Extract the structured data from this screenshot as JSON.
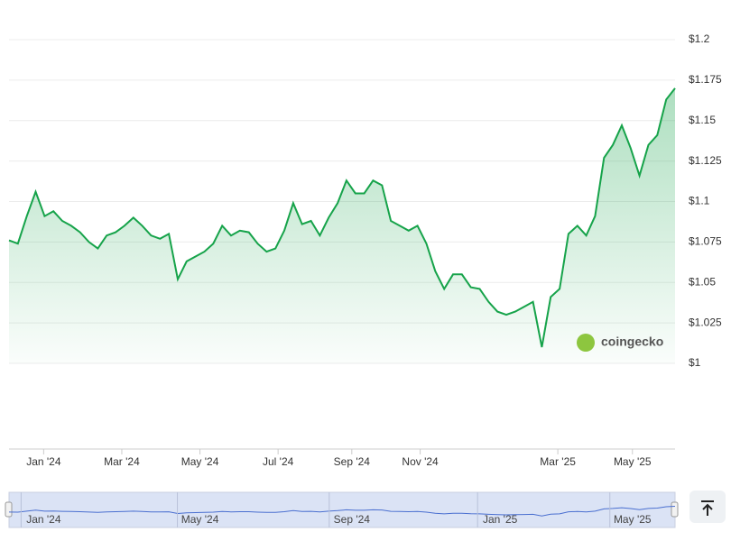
{
  "chart_data": {
    "type": "line",
    "values": [
      1.076,
      1.074,
      1.091,
      1.106,
      1.091,
      1.094,
      1.088,
      1.085,
      1.081,
      1.075,
      1.071,
      1.079,
      1.081,
      1.085,
      1.09,
      1.085,
      1.079,
      1.077,
      1.08,
      1.052,
      1.063,
      1.066,
      1.069,
      1.074,
      1.085,
      1.079,
      1.082,
      1.081,
      1.074,
      1.069,
      1.071,
      1.082,
      1.099,
      1.086,
      1.088,
      1.079,
      1.09,
      1.099,
      1.113,
      1.105,
      1.105,
      1.113,
      1.11,
      1.088,
      1.085,
      1.082,
      1.085,
      1.074,
      1.057,
      1.046,
      1.055,
      1.055,
      1.047,
      1.046,
      1.038,
      1.032,
      1.03,
      1.032,
      1.035,
      1.038,
      1.01,
      1.041,
      1.046,
      1.08,
      1.085,
      1.079,
      1.091,
      1.127,
      1.135,
      1.147,
      1.133,
      1.116,
      1.135,
      1.141,
      1.163,
      1.17
    ],
    "color": "#16a34a",
    "xlim": [
      0,
      75
    ],
    "xticks": [
      {
        "value": 3.9,
        "label": "Jan '24"
      },
      {
        "value": 12.7,
        "label": "Mar '24"
      },
      {
        "value": 21.5,
        "label": "May '24"
      },
      {
        "value": 30.3,
        "label": "Jul '24"
      },
      {
        "value": 38.6,
        "label": "Sep '24"
      },
      {
        "value": 46.3,
        "label": "Nov '24"
      },
      {
        "value": 61.8,
        "label": "Mar '25"
      },
      {
        "value": 70.2,
        "label": "May '25"
      }
    ],
    "ylim": [
      1,
      1.2
    ],
    "yticks": [
      {
        "value": 1,
        "label": "$1"
      },
      {
        "value": 1.025,
        "label": "$1.025"
      },
      {
        "value": 1.05,
        "label": "$1.05"
      },
      {
        "value": 1.075,
        "label": "$1.075"
      },
      {
        "value": 1.1,
        "label": "$1.1"
      },
      {
        "value": 1.125,
        "label": "$1.125"
      },
      {
        "value": 1.15,
        "label": "$1.15"
      },
      {
        "value": 1.175,
        "label": "$1.175"
      },
      {
        "value": 1.2,
        "label": "$1.2"
      }
    ],
    "grid": true,
    "watermark": "coingecko",
    "navigator_ticks": [
      {
        "value": 3.9,
        "label": "Jan '24"
      },
      {
        "value": 21.5,
        "label": "May '24"
      },
      {
        "value": 38.6,
        "label": "Sep '24"
      },
      {
        "value": 55.3,
        "label": "Jan '25"
      },
      {
        "value": 70.2,
        "label": "May '25"
      }
    ]
  }
}
